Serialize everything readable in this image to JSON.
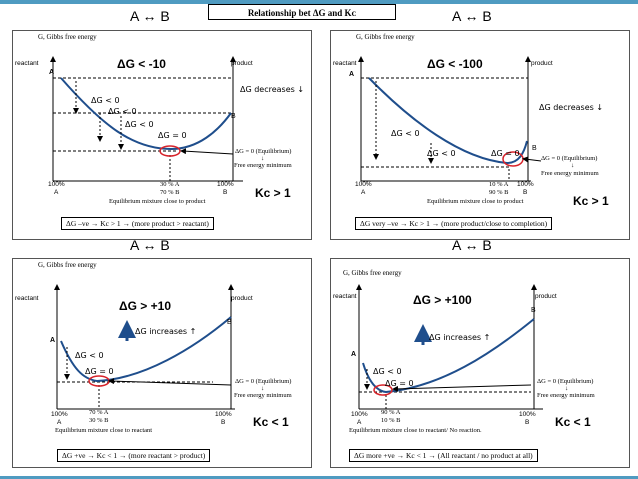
{
  "slide": {
    "title": "Relationship bet ΔG and Kᴄ",
    "reaction_label": "A ↔ B"
  },
  "panels": [
    {
      "y_label": "G, Gibbs free energy",
      "reactant": "reactant",
      "product": "product",
      "a_label": "A",
      "b_label": "B",
      "dg_title": "ΔG < -10",
      "trend": "ΔG decreases ↓",
      "steps": [
        "ΔG < 0",
        "ΔG < 0",
        "ΔG < 0",
        "ΔG = 0"
      ],
      "x_left": [
        "100%",
        "A"
      ],
      "x_mid": [
        "30 % A",
        "70 % B"
      ],
      "x_right": [
        "100%",
        "B"
      ],
      "eq_note": [
        "ΔG = 0 (Equilibrium)",
        "↓",
        "Free energy minimum"
      ],
      "mixture": "Equilibrium mixture close to product",
      "kc": "Kc > 1",
      "caption": "ΔG –ve → Kc > 1 → (more product > reactant)"
    },
    {
      "y_label": "G, Gibbs free energy",
      "reactant": "reactant",
      "product": "product",
      "a_label": "A",
      "b_label": "B",
      "dg_title": "ΔG < -100",
      "trend": "ΔG decreases ↓",
      "steps": [
        "ΔG < 0",
        "ΔG < 0",
        "ΔG = 0"
      ],
      "x_left": [
        "100%",
        "A"
      ],
      "x_mid": [
        "10 % A",
        "90 % B"
      ],
      "x_right": [
        "100%",
        "B"
      ],
      "eq_note": [
        "ΔG = 0 (Equilibrium)",
        "↓",
        "Free energy minimum"
      ],
      "mixture": "Equilibrium mixture close to product",
      "kc": "Kc > 1",
      "caption": "ΔG very –ve → Kc > 1 → (more product/close to completion)"
    },
    {
      "y_label": "G, Gibbs free energy",
      "reactant": "reactant",
      "product": "product",
      "a_label": "A",
      "b_label": "B",
      "dg_title": "ΔG > +10",
      "trend": "ΔG increases ↑",
      "steps": [
        "ΔG < 0",
        "ΔG = 0"
      ],
      "x_left": [
        "100%",
        "A"
      ],
      "x_mid": [
        "70 % A",
        "30 % B"
      ],
      "x_right": [
        "100%",
        "B"
      ],
      "eq_note": [
        "ΔG = 0 (Equilibrium)",
        "↓",
        "Free energy minimum"
      ],
      "mixture": "Equilibrium mixture close to reactant",
      "kc": "Kc < 1",
      "caption": "ΔG +ve → Kc < 1 → (more reactant > product)"
    },
    {
      "y_label": "G, Gibbs free energy",
      "reactant": "reactant",
      "product": "product",
      "a_label": "A",
      "b_label": "B",
      "dg_title": "ΔG > +100",
      "trend": "ΔG increases ↑",
      "steps": [
        "ΔG < 0",
        "ΔG = 0"
      ],
      "x_left": [
        "100%",
        "A"
      ],
      "x_mid": [
        "90 % A",
        "10 % B"
      ],
      "x_right": [
        "100%",
        "B"
      ],
      "eq_note": [
        "ΔG = 0 (Equilibrium)",
        "↓",
        "Free energy minimum"
      ],
      "mixture": "Equilibrium mixture close to reactant/ No reaction.",
      "kc": "Kc < 1",
      "caption": "ΔG more +ve → Kc < 1 → (All reactant / no product at all)"
    }
  ]
}
